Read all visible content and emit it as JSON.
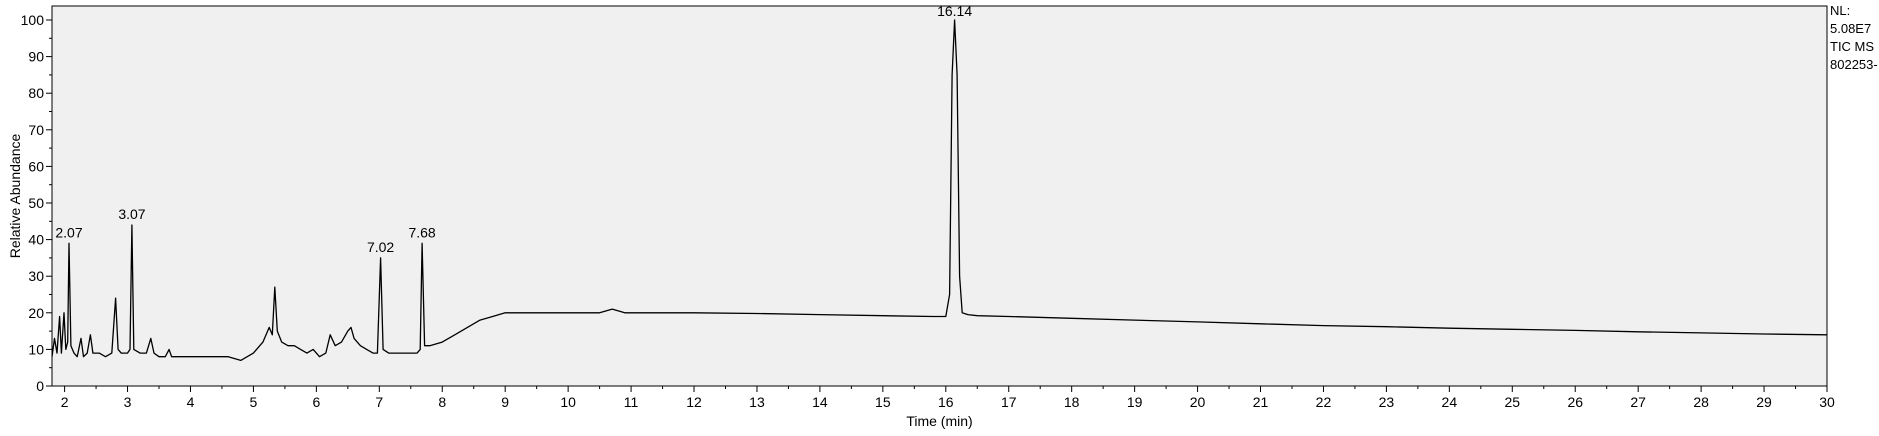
{
  "chart_data": {
    "type": "line",
    "title": "",
    "xlabel": "Time (min)",
    "ylabel": "Relative Abundance",
    "xlim": [
      1.8,
      30
    ],
    "ylim": [
      0,
      100
    ],
    "x_ticks": [
      2,
      3,
      4,
      5,
      6,
      7,
      8,
      9,
      10,
      11,
      12,
      13,
      14,
      15,
      16,
      17,
      18,
      19,
      20,
      21,
      22,
      23,
      24,
      25,
      26,
      27,
      28,
      29,
      30
    ],
    "y_ticks": [
      0,
      10,
      20,
      30,
      40,
      50,
      60,
      70,
      80,
      90,
      100
    ],
    "grid": false,
    "plot_background": "#f0f0f0",
    "line_color": "#000000",
    "series": [
      {
        "points": [
          [
            1.8,
            8
          ],
          [
            1.84,
            13
          ],
          [
            1.88,
            9
          ],
          [
            1.92,
            19
          ],
          [
            1.95,
            9
          ],
          [
            1.99,
            20
          ],
          [
            2.02,
            10
          ],
          [
            2.05,
            12
          ],
          [
            2.07,
            39
          ],
          [
            2.1,
            11
          ],
          [
            2.15,
            9
          ],
          [
            2.2,
            8
          ],
          [
            2.26,
            13
          ],
          [
            2.3,
            8
          ],
          [
            2.36,
            9
          ],
          [
            2.41,
            14
          ],
          [
            2.45,
            9
          ],
          [
            2.55,
            9
          ],
          [
            2.65,
            8
          ],
          [
            2.75,
            9
          ],
          [
            2.81,
            24
          ],
          [
            2.85,
            10
          ],
          [
            2.9,
            9
          ],
          [
            3.0,
            9
          ],
          [
            3.04,
            10
          ],
          [
            3.07,
            44
          ],
          [
            3.1,
            10
          ],
          [
            3.2,
            9
          ],
          [
            3.3,
            9
          ],
          [
            3.37,
            13
          ],
          [
            3.42,
            9
          ],
          [
            3.5,
            8
          ],
          [
            3.6,
            8
          ],
          [
            3.66,
            10
          ],
          [
            3.7,
            8
          ],
          [
            3.8,
            8
          ],
          [
            4.0,
            8
          ],
          [
            4.2,
            8
          ],
          [
            4.4,
            8
          ],
          [
            4.6,
            8
          ],
          [
            4.8,
            7
          ],
          [
            5.0,
            9
          ],
          [
            5.15,
            12
          ],
          [
            5.25,
            16
          ],
          [
            5.3,
            14
          ],
          [
            5.34,
            27
          ],
          [
            5.38,
            15
          ],
          [
            5.45,
            12
          ],
          [
            5.55,
            11
          ],
          [
            5.65,
            11
          ],
          [
            5.75,
            10
          ],
          [
            5.85,
            9
          ],
          [
            5.95,
            10
          ],
          [
            6.05,
            8
          ],
          [
            6.15,
            9
          ],
          [
            6.22,
            14
          ],
          [
            6.3,
            11
          ],
          [
            6.4,
            12
          ],
          [
            6.5,
            15
          ],
          [
            6.55,
            16
          ],
          [
            6.6,
            13
          ],
          [
            6.7,
            11
          ],
          [
            6.8,
            10
          ],
          [
            6.9,
            9
          ],
          [
            6.97,
            9
          ],
          [
            7.02,
            35
          ],
          [
            7.06,
            10
          ],
          [
            7.15,
            9
          ],
          [
            7.3,
            9
          ],
          [
            7.45,
            9
          ],
          [
            7.6,
            9
          ],
          [
            7.65,
            10
          ],
          [
            7.68,
            39
          ],
          [
            7.72,
            11
          ],
          [
            7.8,
            11
          ],
          [
            8.0,
            12
          ],
          [
            8.2,
            14
          ],
          [
            8.4,
            16
          ],
          [
            8.6,
            18
          ],
          [
            8.8,
            19
          ],
          [
            9.0,
            20
          ],
          [
            9.5,
            20
          ],
          [
            10.0,
            20
          ],
          [
            10.5,
            20
          ],
          [
            10.7,
            21
          ],
          [
            10.9,
            20
          ],
          [
            11.5,
            20
          ],
          [
            12.0,
            20
          ],
          [
            13.0,
            19.8
          ],
          [
            14.0,
            19.5
          ],
          [
            15.0,
            19.2
          ],
          [
            15.8,
            19
          ],
          [
            16.0,
            19
          ],
          [
            16.06,
            25
          ],
          [
            16.1,
            85
          ],
          [
            16.14,
            100
          ],
          [
            16.18,
            85
          ],
          [
            16.22,
            30
          ],
          [
            16.26,
            20
          ],
          [
            16.35,
            19.5
          ],
          [
            16.5,
            19.2
          ],
          [
            17.0,
            19
          ],
          [
            18.0,
            18.5
          ],
          [
            19.0,
            18
          ],
          [
            20.0,
            17.5
          ],
          [
            21.0,
            17
          ],
          [
            22.0,
            16.5
          ],
          [
            23.0,
            16.2
          ],
          [
            24.0,
            15.8
          ],
          [
            25.0,
            15.5
          ],
          [
            26.0,
            15.2
          ],
          [
            27.0,
            14.8
          ],
          [
            28.0,
            14.5
          ],
          [
            29.0,
            14.2
          ],
          [
            30.0,
            14
          ]
        ]
      }
    ],
    "annotations": [
      {
        "text": "2.07",
        "x": 2.07,
        "y": 39
      },
      {
        "text": "3.07",
        "x": 3.07,
        "y": 44
      },
      {
        "text": "7.02",
        "x": 7.02,
        "y": 35
      },
      {
        "text": "7.68",
        "x": 7.68,
        "y": 39
      },
      {
        "text": "16.14",
        "x": 16.14,
        "y": 100
      }
    ],
    "info_lines": [
      "NL:",
      "5.08E7",
      "TIC  MS",
      "802253-"
    ]
  }
}
